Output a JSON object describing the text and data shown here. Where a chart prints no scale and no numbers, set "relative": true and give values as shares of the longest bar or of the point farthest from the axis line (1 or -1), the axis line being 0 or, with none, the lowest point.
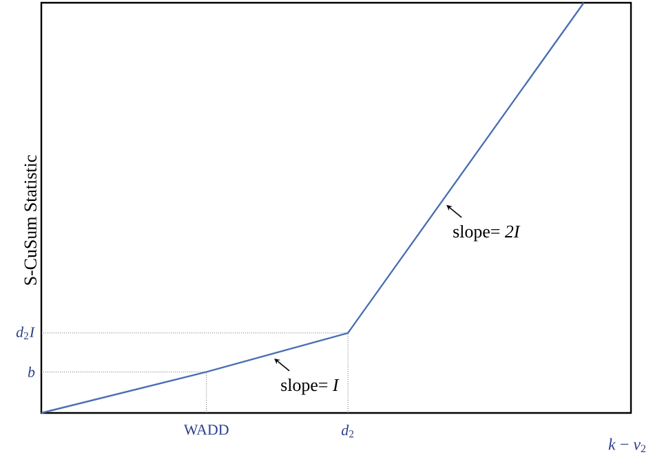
{
  "chart_data": {
    "type": "line",
    "relative": true,
    "categories": [
      null,
      null,
      null,
      null,
      null,
      null,
      null,
      "WADD",
      null,
      null,
      null,
      null,
      null,
      "*d*$_{2}$",
      null,
      null,
      null,
      null,
      null,
      null,
      null,
      null,
      null,
      null,
      null,
      null
    ],
    "xlabel": "*k* − *ν*$_{2}$",
    "ylabel": "S-CuSum Statistic",
    "annotations": [
      "slope= *I*",
      "slope= *2I*"
    ],
    "ref_lines": [
      {
        "axis": "y",
        "value": 0.1,
        "label": "*b*",
        "color": "#666666",
        "line_style": "dotted"
      },
      {
        "axis": "y",
        "value": 0.195,
        "label": "*d*$_{2}$*I*",
        "color": "#666666",
        "line_style": "dotted"
      },
      {
        "axis": "x",
        "value": "WADD",
        "color": "#666666",
        "line_style": "dotted"
      },
      {
        "axis": "x",
        "value": "*d*$_{2}$",
        "color": "#666666",
        "line_style": "dotted"
      }
    ],
    "marker": "none",
    "line_style": "solid",
    "series": [
      {
        "color": "#4a6fb5",
        "values": [
          0,
          null,
          null,
          null,
          null,
          null,
          null,
          0.1,
          null,
          null,
          null,
          null,
          null,
          0.195,
          null,
          null,
          null,
          null,
          null,
          null,
          null,
          null,
          null,
          1,
          null,
          null
        ]
      }
    ]
  }
}
